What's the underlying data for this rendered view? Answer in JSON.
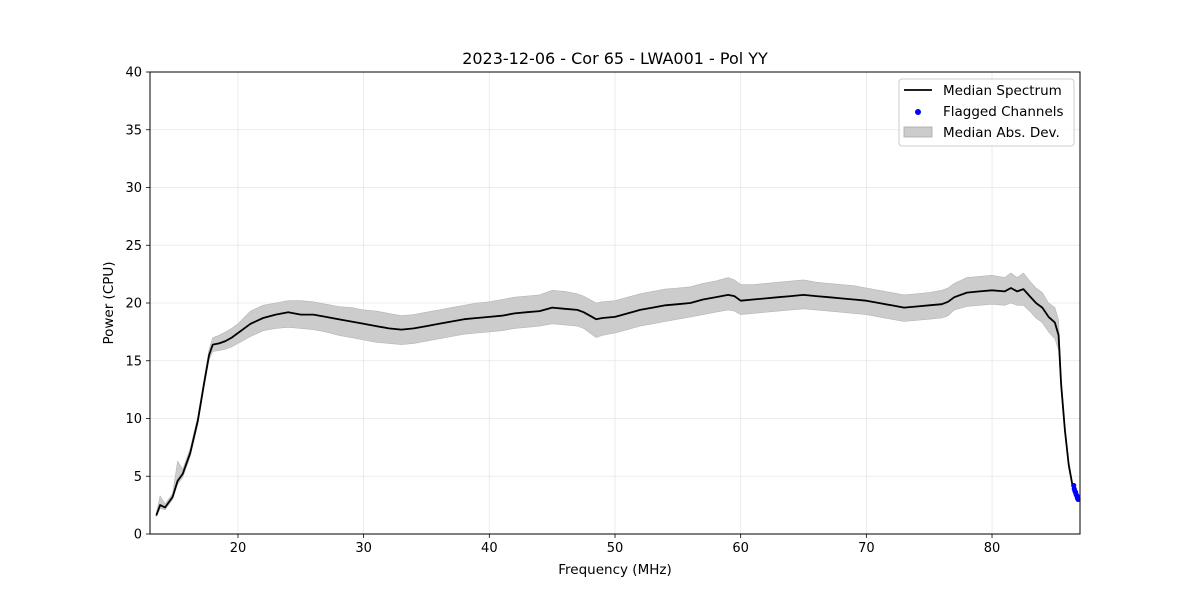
{
  "chart_data": {
    "type": "line",
    "title": "2023-12-06 - Cor 65 - LWA001 - Pol YY",
    "xlabel": "Frequency (MHz)",
    "ylabel": "Power (CPU)",
    "xlim": [
      13,
      87
    ],
    "ylim": [
      0,
      40
    ],
    "xticks": [
      20,
      30,
      40,
      50,
      60,
      70,
      80
    ],
    "yticks": [
      0,
      5,
      10,
      15,
      20,
      25,
      30,
      35,
      40
    ],
    "grid": true,
    "legend_position": "top-right",
    "legend": [
      "Median Spectrum",
      "Flagged Channels",
      "Median Abs. Dev."
    ],
    "series": [
      {
        "name": "Median Spectrum",
        "color": "#000000",
        "x": [
          13.5,
          13.8,
          14.2,
          14.8,
          15.2,
          15.6,
          16.2,
          16.8,
          17.3,
          17.7,
          18.0,
          18.5,
          19.0,
          19.5,
          20.0,
          21.0,
          22.0,
          23.0,
          24.0,
          25.0,
          26.0,
          27.0,
          28.0,
          29.0,
          30.0,
          31.0,
          32.0,
          33.0,
          34.0,
          35.0,
          36.0,
          37.0,
          38.0,
          39.0,
          40.0,
          41.0,
          42.0,
          43.0,
          44.0,
          45.0,
          46.0,
          47.0,
          47.5,
          48.0,
          48.5,
          49.0,
          50.0,
          51.0,
          52.0,
          53.0,
          54.0,
          55.0,
          56.0,
          57.0,
          58.0,
          59.0,
          59.5,
          60.0,
          61.0,
          62.0,
          63.0,
          64.0,
          65.0,
          66.0,
          67.0,
          68.0,
          69.0,
          70.0,
          71.0,
          72.0,
          73.0,
          74.0,
          75.0,
          76.0,
          76.5,
          77.0,
          78.0,
          79.0,
          80.0,
          81.0,
          81.5,
          82.0,
          82.5,
          83.0,
          83.5,
          84.0,
          84.5,
          85.0,
          85.3,
          85.5,
          85.8,
          86.1,
          86.4
        ],
        "y": [
          1.6,
          2.5,
          2.3,
          3.2,
          4.6,
          5.2,
          7.0,
          9.8,
          13.0,
          15.5,
          16.4,
          16.5,
          16.7,
          17.0,
          17.4,
          18.2,
          18.7,
          19.0,
          19.2,
          19.0,
          19.0,
          18.8,
          18.6,
          18.4,
          18.2,
          18.0,
          17.8,
          17.7,
          17.8,
          18.0,
          18.2,
          18.4,
          18.6,
          18.7,
          18.8,
          18.9,
          19.1,
          19.2,
          19.3,
          19.6,
          19.5,
          19.4,
          19.2,
          18.9,
          18.6,
          18.7,
          18.8,
          19.1,
          19.4,
          19.6,
          19.8,
          19.9,
          20.0,
          20.3,
          20.5,
          20.7,
          20.6,
          20.2,
          20.3,
          20.4,
          20.5,
          20.6,
          20.7,
          20.6,
          20.5,
          20.4,
          20.3,
          20.2,
          20.0,
          19.8,
          19.6,
          19.7,
          19.8,
          19.9,
          20.1,
          20.5,
          20.9,
          21.0,
          21.1,
          21.0,
          21.3,
          21.0,
          21.2,
          20.6,
          20.0,
          19.6,
          18.8,
          18.3,
          17.2,
          13.0,
          9.0,
          6.0,
          4.2
        ]
      },
      {
        "name": "Flagged Channels",
        "color": "#0000ff",
        "x": [
          86.5,
          86.55,
          86.6,
          86.65,
          86.7,
          86.75,
          86.8,
          86.85
        ],
        "y": [
          4.2,
          3.9,
          3.7,
          3.6,
          3.4,
          3.3,
          3.1,
          3.0
        ]
      },
      {
        "name": "Median Abs. Dev.",
        "color": "#cccccc",
        "x": [
          13.5,
          13.8,
          14.2,
          14.8,
          15.2,
          15.6,
          16.2,
          16.8,
          17.3,
          17.7,
          18.0,
          18.5,
          19.0,
          19.5,
          20.0,
          21.0,
          22.0,
          23.0,
          24.0,
          25.0,
          26.0,
          27.0,
          28.0,
          29.0,
          30.0,
          31.0,
          32.0,
          33.0,
          34.0,
          35.0,
          36.0,
          37.0,
          38.0,
          39.0,
          40.0,
          41.0,
          42.0,
          43.0,
          44.0,
          45.0,
          46.0,
          47.0,
          47.5,
          48.0,
          48.5,
          49.0,
          50.0,
          51.0,
          52.0,
          53.0,
          54.0,
          55.0,
          56.0,
          57.0,
          58.0,
          59.0,
          59.5,
          60.0,
          61.0,
          62.0,
          63.0,
          64.0,
          65.0,
          66.0,
          67.0,
          68.0,
          69.0,
          70.0,
          71.0,
          72.0,
          73.0,
          74.0,
          75.0,
          76.0,
          76.5,
          77.0,
          78.0,
          79.0,
          80.0,
          81.0,
          81.5,
          82.0,
          82.5,
          83.0,
          83.5,
          84.0,
          84.5,
          85.0,
          85.3,
          85.5,
          85.8,
          86.1,
          86.4
        ],
        "lower": [
          1.5,
          2.2,
          2.1,
          3.0,
          4.3,
          4.9,
          6.7,
          9.5,
          12.7,
          15.1,
          15.8,
          15.9,
          16.0,
          16.2,
          16.5,
          17.1,
          17.6,
          17.8,
          17.9,
          17.8,
          17.7,
          17.5,
          17.2,
          17.0,
          16.8,
          16.6,
          16.5,
          16.4,
          16.5,
          16.7,
          16.9,
          17.1,
          17.3,
          17.4,
          17.5,
          17.6,
          17.8,
          17.9,
          18.0,
          18.2,
          18.1,
          18.0,
          17.8,
          17.4,
          17.0,
          17.2,
          17.4,
          17.7,
          18.0,
          18.2,
          18.4,
          18.6,
          18.8,
          19.0,
          19.2,
          19.4,
          19.3,
          19.0,
          19.1,
          19.2,
          19.3,
          19.4,
          19.5,
          19.4,
          19.3,
          19.2,
          19.1,
          19.0,
          18.8,
          18.6,
          18.4,
          18.5,
          18.6,
          18.7,
          18.9,
          19.4,
          19.7,
          19.8,
          19.9,
          19.8,
          20.0,
          19.8,
          19.8,
          19.3,
          18.7,
          18.3,
          17.5,
          16.9,
          15.9,
          12.4,
          8.6,
          5.7,
          4.0
        ],
        "upper": [
          1.8,
          3.3,
          2.6,
          3.5,
          6.3,
          5.6,
          7.4,
          10.2,
          13.4,
          16.0,
          17.0,
          17.2,
          17.5,
          17.8,
          18.2,
          19.3,
          19.8,
          20.0,
          20.2,
          20.2,
          20.1,
          19.9,
          19.7,
          19.6,
          19.4,
          19.3,
          19.1,
          18.9,
          19.0,
          19.2,
          19.4,
          19.6,
          19.8,
          20.0,
          20.1,
          20.3,
          20.5,
          20.6,
          20.7,
          21.1,
          21.0,
          20.8,
          20.6,
          20.3,
          20.0,
          20.1,
          20.2,
          20.5,
          20.8,
          21.0,
          21.2,
          21.3,
          21.4,
          21.7,
          21.9,
          22.2,
          22.0,
          21.6,
          21.6,
          21.7,
          21.8,
          21.9,
          22.0,
          21.8,
          21.7,
          21.6,
          21.5,
          21.3,
          21.1,
          20.9,
          20.7,
          20.8,
          20.9,
          21.1,
          21.3,
          21.7,
          22.2,
          22.3,
          22.4,
          22.2,
          22.6,
          22.2,
          22.6,
          21.9,
          21.3,
          20.9,
          20.0,
          19.6,
          18.5,
          13.6,
          9.4,
          6.3,
          4.4
        ]
      }
    ]
  }
}
